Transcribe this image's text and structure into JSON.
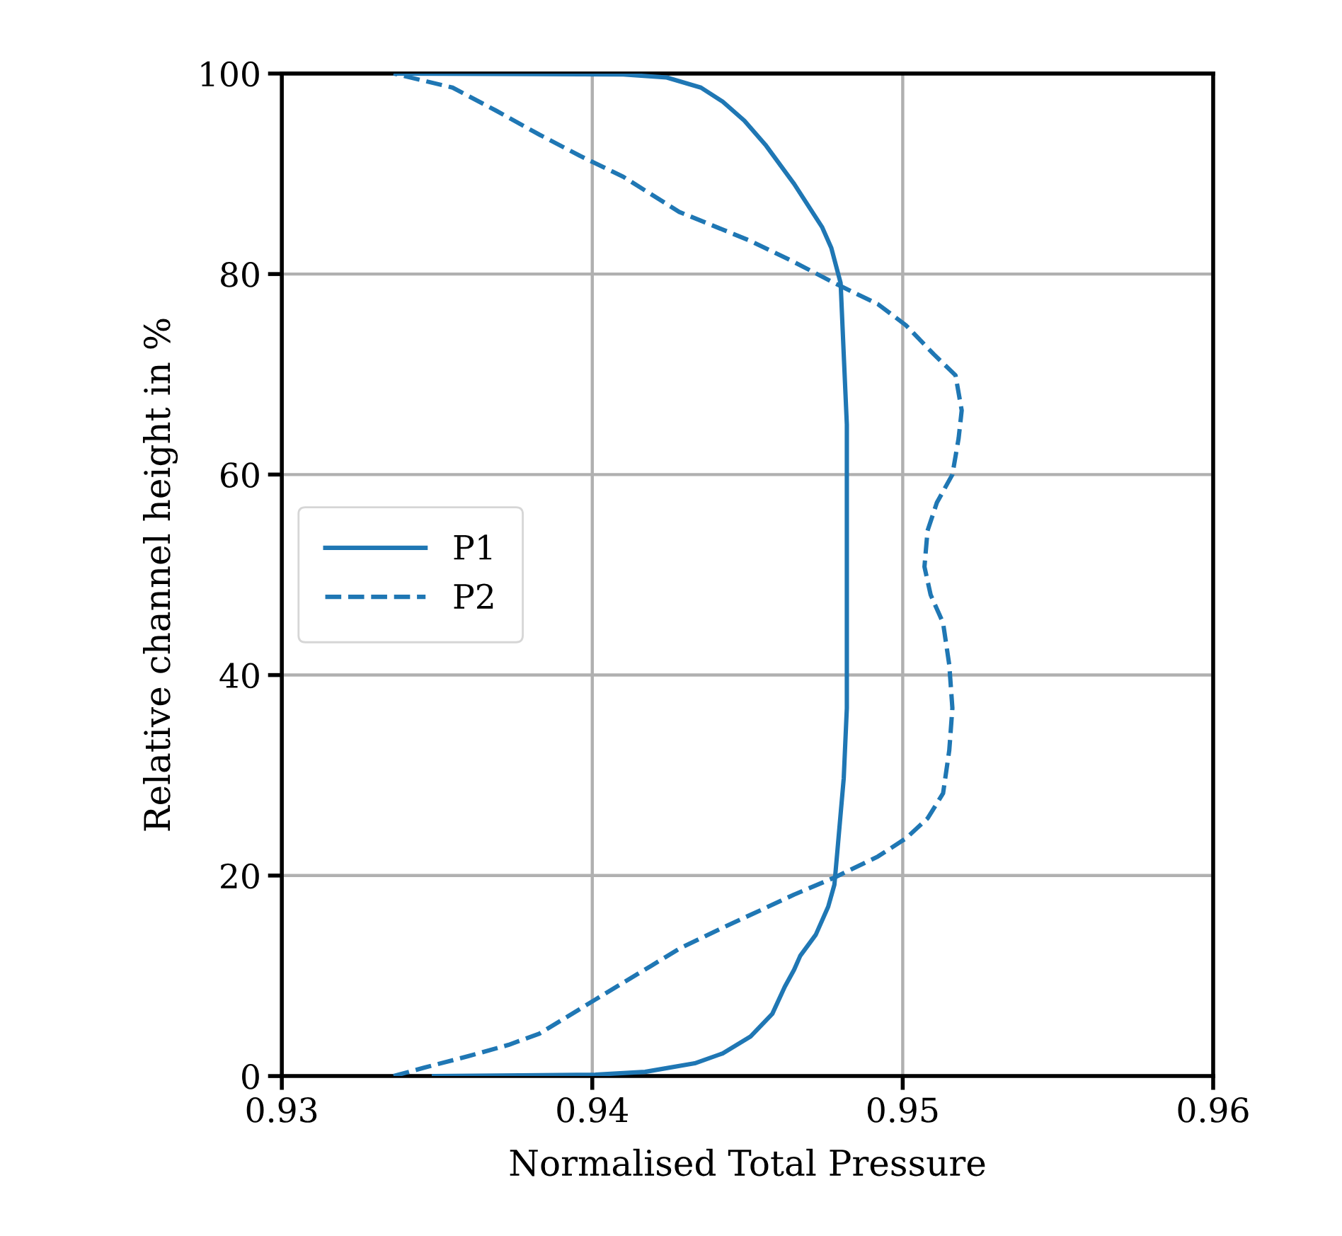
{
  "chart_data": {
    "type": "line",
    "xlabel": "Normalised Total Pressure",
    "ylabel": "Relative channel height in %",
    "xlim": [
      0.93,
      0.96
    ],
    "xticks": [
      {
        "value": 0.93,
        "label": "0.93"
      },
      {
        "value": 0.94,
        "label": "0.94"
      },
      {
        "value": 0.95,
        "label": "0.95"
      },
      {
        "value": 0.96,
        "label": "0.96"
      }
    ],
    "ylim": [
      0,
      100
    ],
    "yticks": [
      0,
      20,
      40,
      60,
      80,
      100
    ],
    "grid": true,
    "legend": "left",
    "marker": "none",
    "series": [
      {
        "name": "P1",
        "color": "#1f77b4",
        "line_style": "solid",
        "x": [
          0.9349,
          0.9401,
          0.9417,
          0.9433,
          0.9442,
          0.9451,
          0.9458,
          0.9462,
          0.9465,
          0.9467,
          0.9472,
          0.9476,
          0.9478,
          0.9479,
          0.9481,
          0.9482,
          0.9482,
          0.9482,
          0.9482,
          0.9481,
          0.948,
          0.9477,
          0.9474,
          0.9465,
          0.9456,
          0.9449,
          0.9442,
          0.9435,
          0.9424,
          0.941,
          0.9337
        ],
        "values": [
          0,
          0.14,
          0.42,
          1.27,
          2.26,
          3.95,
          6.21,
          8.9,
          10.6,
          12.0,
          14.1,
          16.9,
          19.1,
          22.6,
          29.7,
          36.7,
          46.6,
          56.5,
          65.0,
          72.0,
          79.1,
          82.6,
          84.7,
          89.0,
          92.8,
          95.3,
          97.2,
          98.6,
          99.6,
          99.9,
          100
        ]
      },
      {
        "name": "P2",
        "color": "#1f77b4",
        "line_style": "dashed",
        "x": [
          0.9336,
          0.9346,
          0.936,
          0.9373,
          0.9383,
          0.9392,
          0.9401,
          0.941,
          0.9419,
          0.9428,
          0.9442,
          0.9456,
          0.9465,
          0.9478,
          0.9492,
          0.9501,
          0.9508,
          0.9513,
          0.9515,
          0.9516,
          0.9515,
          0.9513,
          0.9509,
          0.9507,
          0.9508,
          0.9511,
          0.9516,
          0.9518,
          0.9519,
          0.9517,
          0.951,
          0.9501,
          0.9492,
          0.9478,
          0.9465,
          0.9451,
          0.9428,
          0.941,
          0.9396,
          0.9383,
          0.9369,
          0.9355,
          0.9336
        ],
        "values": [
          0,
          0.85,
          1.98,
          3.11,
          4.24,
          5.93,
          7.63,
          9.32,
          11.0,
          12.7,
          14.8,
          16.8,
          18.1,
          19.8,
          21.9,
          23.7,
          25.7,
          28.2,
          32.5,
          36.7,
          41.0,
          45.2,
          48.0,
          50.8,
          54.4,
          57.2,
          60.0,
          63.6,
          66.4,
          69.9,
          72.0,
          74.9,
          77.0,
          79.1,
          81.2,
          83.3,
          86.2,
          89.7,
          91.8,
          93.9,
          96.3,
          98.6,
          100
        ]
      }
    ]
  }
}
